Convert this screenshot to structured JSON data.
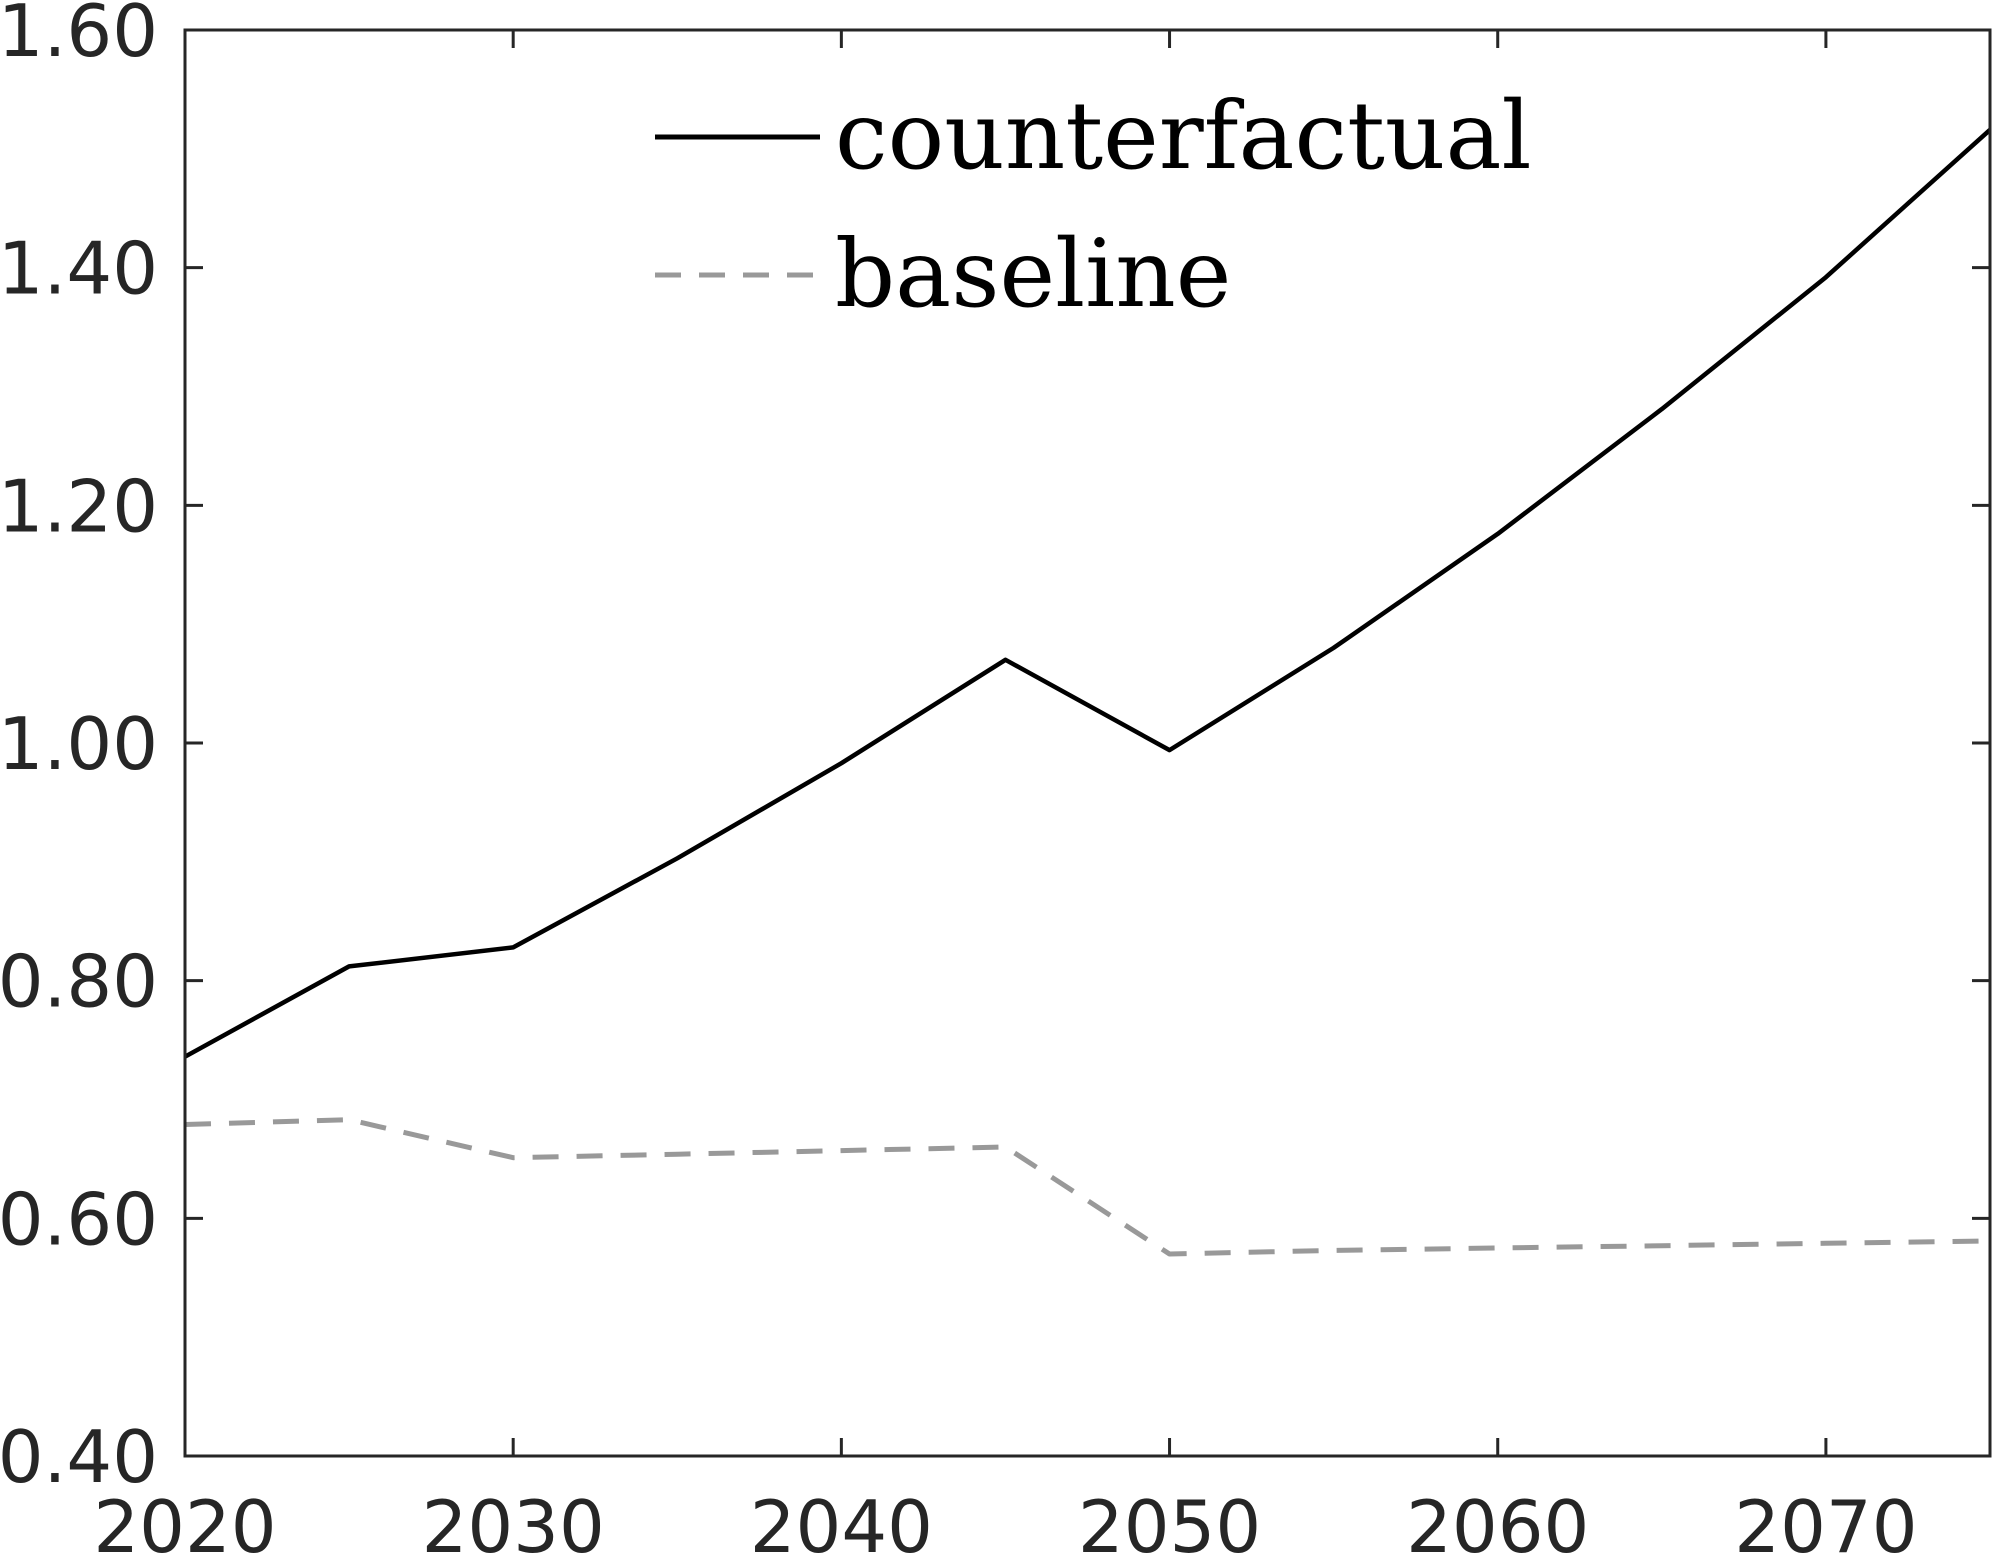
{
  "chart_data": {
    "type": "line",
    "title": "",
    "xlabel": "",
    "ylabel": "",
    "x": [
      2020,
      2025,
      2030,
      2035,
      2040,
      2045,
      2050,
      2055,
      2060,
      2065,
      2070,
      2075
    ],
    "xlim": [
      2020,
      2075
    ],
    "ylim": [
      0.4,
      1.6
    ],
    "xticks": [
      2020,
      2030,
      2040,
      2050,
      2060,
      2070
    ],
    "xtick_labels": [
      "2020",
      "2030",
      "2040",
      "2050",
      "2060",
      "2070"
    ],
    "yticks": [
      0.4,
      0.6,
      0.8,
      1.0,
      1.2,
      1.4,
      1.6
    ],
    "ytick_labels": [
      "0.40",
      "0.60",
      "0.80",
      "1.00",
      "1.20",
      "1.40",
      "1.60"
    ],
    "grid": false,
    "legend_position": "top-center",
    "series": [
      {
        "name": "counterfactual",
        "color": "#000000",
        "style": "solid",
        "values": [
          0.736,
          0.812,
          0.828,
          0.903,
          0.983,
          1.07,
          0.994,
          1.08,
          1.176,
          1.281,
          1.392,
          1.516
        ]
      },
      {
        "name": "baseline",
        "color": "#999999",
        "style": "dashed",
        "values": [
          0.679,
          0.683,
          0.651,
          0.654,
          0.657,
          0.66,
          0.57,
          0.573,
          0.575,
          0.577,
          0.579,
          0.581
        ]
      }
    ]
  }
}
